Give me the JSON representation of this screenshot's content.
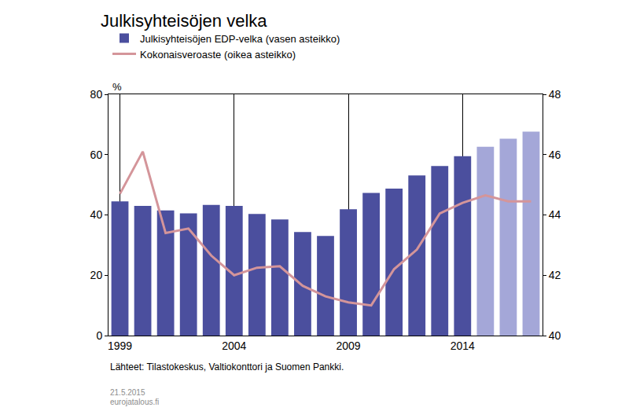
{
  "chart_data": {
    "type": "bar",
    "title": "Julkisyhteisöjen velka",
    "ylabel": "%",
    "x": [
      1999,
      2000,
      2001,
      2002,
      2003,
      2004,
      2005,
      2006,
      2007,
      2008,
      2009,
      2010,
      2011,
      2012,
      2013,
      2014,
      2015,
      2016,
      2017
    ],
    "xlim": [
      1998.5,
      2017.5
    ],
    "xticks": [
      1999,
      2004,
      2009,
      2014
    ],
    "ylim": [
      0,
      80
    ],
    "yticks": [
      0,
      20,
      40,
      60,
      80
    ],
    "y2lim": [
      40,
      48
    ],
    "y2ticks": [
      40,
      42,
      44,
      46,
      48
    ],
    "grid": "x",
    "legend": "top left",
    "series": [
      {
        "name": "Julkisyhteisöjen EDP-velka (vasen asteikko)",
        "type": "bar",
        "color": "#4b4f9e",
        "colors": [
          "#4b4f9e",
          "#4b4f9e",
          "#4b4f9e",
          "#4b4f9e",
          "#4b4f9e",
          "#4b4f9e",
          "#4b4f9e",
          "#4b4f9e",
          "#4b4f9e",
          "#4b4f9e",
          "#4b4f9e",
          "#4b4f9e",
          "#4b4f9e",
          "#4b4f9e",
          "#4b4f9e",
          "#4b4f9e",
          "#a4a7d8",
          "#a4a7d8",
          "#a4a7d8"
        ],
        "values": [
          44.5,
          43.0,
          41.5,
          40.5,
          43.3,
          43.0,
          40.3,
          38.5,
          34.3,
          33.0,
          41.9,
          47.3,
          48.7,
          53.1,
          56.2,
          59.5,
          62.6,
          65.3,
          67.6
        ]
      },
      {
        "name": "Kokonaisveroaste (oikea asteikko)",
        "type": "line",
        "axis": "y2",
        "color": "#d4959a",
        "values": [
          44.7,
          46.1,
          43.4,
          43.55,
          42.65,
          42.0,
          42.25,
          42.3,
          41.65,
          41.3,
          41.1,
          41.0,
          42.2,
          42.85,
          44.05,
          44.4,
          44.65,
          44.45,
          44.45
        ]
      }
    ],
    "annotations": [
      "Lähteet: Tilastokeskus, Valtiokonttori ja Suomen Pankki.",
      "21.5.2015",
      "eurojatalous.fi"
    ]
  }
}
